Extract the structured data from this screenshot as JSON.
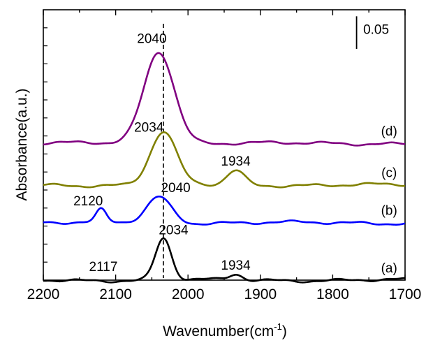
{
  "chart_data": {
    "type": "line",
    "title": "",
    "xlabel": "Wavenumber(cm",
    "xlabel_sup": "-1",
    "xlabel_end": ")",
    "ylabel": "Absorbance(a.u.)",
    "xlim": [
      2200,
      1700
    ],
    "x_reversed": true,
    "xticks": [
      "2200",
      "2100",
      "2000",
      "1900",
      "1800",
      "1700"
    ],
    "xtick_values": [
      2200,
      2100,
      2000,
      1900,
      1800,
      1700
    ],
    "y_ticks_labeled": false,
    "y_offset_units": true,
    "ylim": [
      0,
      0.415
    ],
    "scale_bar": {
      "label": "0.05",
      "value": 0.05
    },
    "dashed_reference_wavenumber": 2034,
    "series": [
      {
        "name": "(a)",
        "color": "#000000",
        "baseline": 0.0,
        "peaks": [
          {
            "center": 2034,
            "height": 0.064,
            "width": 11
          },
          {
            "center": 1934,
            "height": 0.009,
            "width": 9
          }
        ],
        "annotations": [
          {
            "label": "2117",
            "x": 2117,
            "y": 0.014
          },
          {
            "label": "2034",
            "x": 2020,
            "y": 0.07
          },
          {
            "label": "1934",
            "x": 1934,
            "y": 0.016
          }
        ]
      },
      {
        "name": "(b)",
        "color": "#0000ff",
        "baseline": 0.088,
        "peaks": [
          {
            "center": 2120,
            "height": 0.019,
            "width": 7
          },
          {
            "center": 2040,
            "height": 0.04,
            "width": 17
          }
        ],
        "annotations": [
          {
            "label": "2120",
            "x": 2138,
            "y": 0.115
          },
          {
            "label": "2040",
            "x": 2017,
            "y": 0.135
          }
        ]
      },
      {
        "name": "(c)",
        "color": "#808000",
        "baseline": 0.146,
        "peaks": [
          {
            "center": 2034,
            "height": 0.081,
            "width": 18
          },
          {
            "center": 1934,
            "height": 0.022,
            "width": 12
          }
        ],
        "annotations": [
          {
            "label": "2034",
            "x": 2054,
            "y": 0.228
          },
          {
            "label": "1934",
            "x": 1934,
            "y": 0.176
          }
        ]
      },
      {
        "name": "(d)",
        "color": "#800080",
        "baseline": 0.21,
        "peaks": [
          {
            "center": 2040,
            "height": 0.141,
            "width": 21
          }
        ],
        "annotations": [
          {
            "label": "2040",
            "x": 2050,
            "y": 0.364
          }
        ]
      }
    ]
  }
}
